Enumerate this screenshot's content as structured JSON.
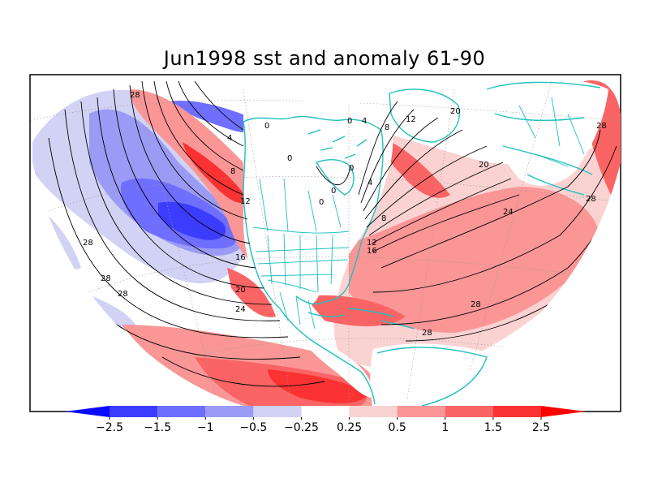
{
  "title": "Jun1998 sst and anomaly 61-90",
  "colorbar": {
    "ticks": [
      "−2.5",
      "−1.5",
      "−1",
      "−0.5",
      "−0.25",
      "0.25",
      "0.5",
      "1",
      "1.5",
      "2.5"
    ],
    "colors": [
      "#0a0aff",
      "#3c3cff",
      "#6e6eff",
      "#9b9bf5",
      "#d2d2f5",
      "#ffffff",
      "#fad2d2",
      "#fa9696",
      "#fa6464",
      "#fa3232",
      "#ff0000"
    ]
  },
  "colors": {
    "coast": "#20c0c0",
    "contour": "#000000",
    "frame": "#000000"
  },
  "contour_labels": [
    {
      "text": "28"
    },
    {
      "text": "4"
    },
    {
      "text": "0"
    },
    {
      "text": "8"
    },
    {
      "text": "12"
    },
    {
      "text": "16"
    },
    {
      "text": "20"
    },
    {
      "text": "24"
    },
    {
      "text": "28"
    },
    {
      "text": "28"
    },
    {
      "text": "28"
    },
    {
      "text": "0"
    },
    {
      "text": "0"
    },
    {
      "text": "0"
    },
    {
      "text": "0"
    },
    {
      "text": "4"
    },
    {
      "text": "8"
    },
    {
      "text": "12"
    },
    {
      "text": "16"
    },
    {
      "text": "0"
    },
    {
      "text": "4"
    },
    {
      "text": "8"
    },
    {
      "text": "12"
    },
    {
      "text": "20"
    },
    {
      "text": "20"
    },
    {
      "text": "24"
    },
    {
      "text": "28"
    },
    {
      "text": "28"
    },
    {
      "text": "28"
    },
    {
      "text": "28"
    }
  ]
}
